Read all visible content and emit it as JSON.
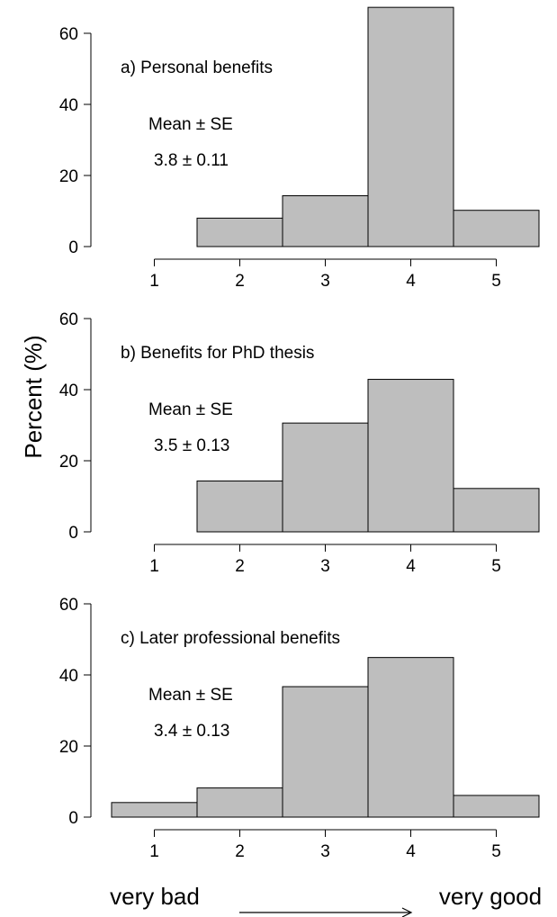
{
  "chart_data": {
    "type": "bar",
    "ylabel": "Percent (%)",
    "xlabel_left": "very bad",
    "xlabel_right": "very good",
    "x_ticks": [
      "1",
      "2",
      "3",
      "4",
      "5"
    ],
    "xlim": [
      0.5,
      5.5
    ],
    "ylim": [
      0,
      60
    ],
    "y_ticks": [
      "0",
      "20",
      "40",
      "60"
    ],
    "grid": false,
    "bar_color": "#bebebe",
    "panels": [
      {
        "title": "a) Personal benefits",
        "stat_label": "Mean ± SE",
        "stat_value": "3.8 ± 0.11",
        "categories": [
          1,
          2,
          3,
          4,
          5
        ],
        "values": [
          0,
          8,
          14.3,
          67.3,
          10.2
        ]
      },
      {
        "title": "b) Benefits for PhD thesis",
        "stat_label": "Mean ± SE",
        "stat_value": "3.5 ± 0.13",
        "categories": [
          1,
          2,
          3,
          4,
          5
        ],
        "values": [
          0,
          14.3,
          30.6,
          42.9,
          12.2
        ]
      },
      {
        "title": "c) Later professional benefits",
        "stat_label": "Mean ± SE",
        "stat_value": "3.4 ± 0.13",
        "categories": [
          1,
          2,
          3,
          4,
          5
        ],
        "values": [
          4.1,
          8.2,
          36.7,
          44.9,
          6.1
        ]
      }
    ]
  }
}
